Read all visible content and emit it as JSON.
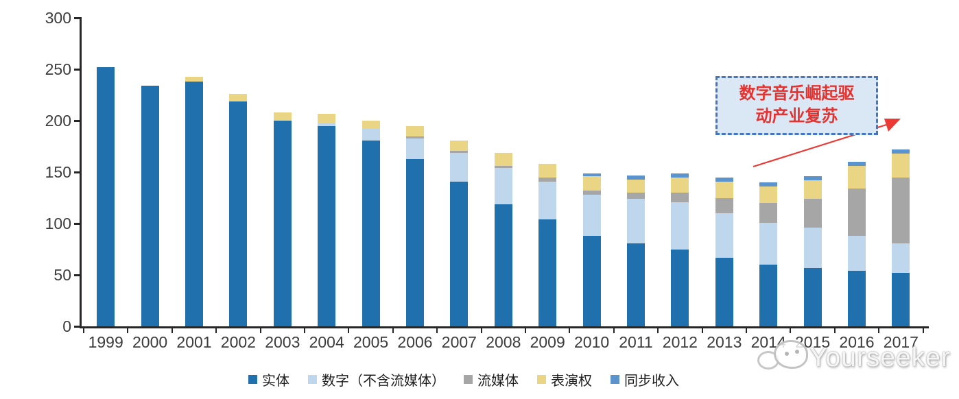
{
  "chart_data": {
    "type": "bar",
    "stacked": true,
    "title": "",
    "xlabel": "",
    "ylabel": "",
    "categories": [
      "1999",
      "2000",
      "2001",
      "2002",
      "2003",
      "2004",
      "2005",
      "2006",
      "2007",
      "2008",
      "2009",
      "2010",
      "2011",
      "2012",
      "2013",
      "2014",
      "2015",
      "2016",
      "2017"
    ],
    "series": [
      {
        "name": "实体",
        "color": "#2170AE",
        "values": [
          252,
          234,
          238,
          219,
          200,
          195,
          181,
          163,
          141,
          119,
          104,
          88,
          81,
          75,
          67,
          60,
          57,
          54,
          52
        ]
      },
      {
        "name": "数字（不含流媒体）",
        "color": "#BFD7ED",
        "values": [
          0,
          0,
          0,
          0,
          0,
          3,
          11,
          20,
          28,
          35,
          37,
          40,
          43,
          46,
          43,
          41,
          39,
          34,
          29
        ]
      },
      {
        "name": "流媒体",
        "color": "#A6A6A6",
        "values": [
          0,
          0,
          0,
          0,
          0,
          0,
          0,
          2,
          2,
          2,
          4,
          4,
          6,
          9,
          15,
          19,
          28,
          46,
          64
        ]
      },
      {
        "name": "表演权",
        "color": "#EAD584",
        "values": [
          0,
          0,
          5,
          7,
          8,
          9,
          8,
          10,
          10,
          13,
          13,
          14,
          13,
          15,
          16,
          16,
          18,
          22,
          23
        ]
      },
      {
        "name": "同步收入",
        "color": "#5B93CD",
        "values": [
          0,
          0,
          0,
          0,
          0,
          0,
          0,
          0,
          0,
          0,
          0,
          3,
          4,
          4,
          4,
          4,
          4,
          4,
          4
        ]
      }
    ],
    "ylim": [
      0,
      300
    ],
    "yticks": [
      "0",
      "50",
      "100",
      "150",
      "200",
      "250",
      "300"
    ],
    "grid": false,
    "legend_position": "bottom"
  },
  "annotation": {
    "line1": "数字音乐崛起驱",
    "line2": "动产业复苏",
    "text_color": "#E5322E",
    "box_fill": "#DAE8F5",
    "box_border": "#4577BE",
    "arrow_color": "#EC3934"
  },
  "watermark": {
    "text": "Yourseeker",
    "logo": "chat-bubbles-icon"
  }
}
